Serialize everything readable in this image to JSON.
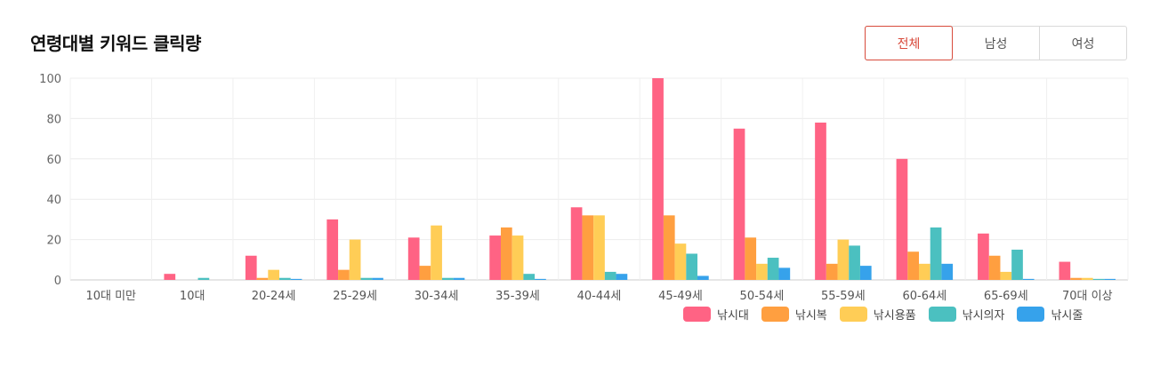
{
  "header": {
    "title": "연령대별 키워드 클릭량"
  },
  "filter": {
    "buttons": [
      "전체",
      "남성",
      "여성"
    ],
    "active": "전체"
  },
  "chart_data": {
    "type": "bar",
    "title": "연령대별 키워드 클릭량",
    "ylim": [
      0,
      100
    ],
    "yticks": [
      0,
      20,
      40,
      60,
      80,
      100
    ],
    "categories": [
      "10대 미만",
      "10대",
      "20-24세",
      "25-29세",
      "30-34세",
      "35-39세",
      "40-44세",
      "45-49세",
      "50-54세",
      "55-59세",
      "60-64세",
      "65-69세",
      "70대 이상"
    ],
    "series": [
      {
        "name": "낚시대",
        "color": "#ff6384",
        "values": [
          0,
          3,
          12,
          30,
          21,
          22,
          36,
          100,
          75,
          78,
          60,
          23,
          9
        ]
      },
      {
        "name": "낚시복",
        "color": "#ff9f40",
        "values": [
          0,
          0,
          1,
          5,
          7,
          26,
          32,
          32,
          21,
          8,
          14,
          12,
          1
        ]
      },
      {
        "name": "낚시용품",
        "color": "#ffcd56",
        "values": [
          0,
          0,
          5,
          20,
          27,
          22,
          32,
          18,
          8,
          20,
          8,
          4,
          1
        ]
      },
      {
        "name": "낚시의자",
        "color": "#4bc0c0",
        "values": [
          0,
          1,
          1,
          1,
          1,
          3,
          4,
          13,
          11,
          17,
          26,
          15,
          0.5
        ]
      },
      {
        "name": "낚시줄",
        "color": "#36a2eb",
        "values": [
          0,
          0,
          0.5,
          1,
          1,
          0.5,
          3,
          2,
          6,
          7,
          8,
          0.5,
          0.5
        ]
      }
    ],
    "legend_position": "bottom-right"
  }
}
